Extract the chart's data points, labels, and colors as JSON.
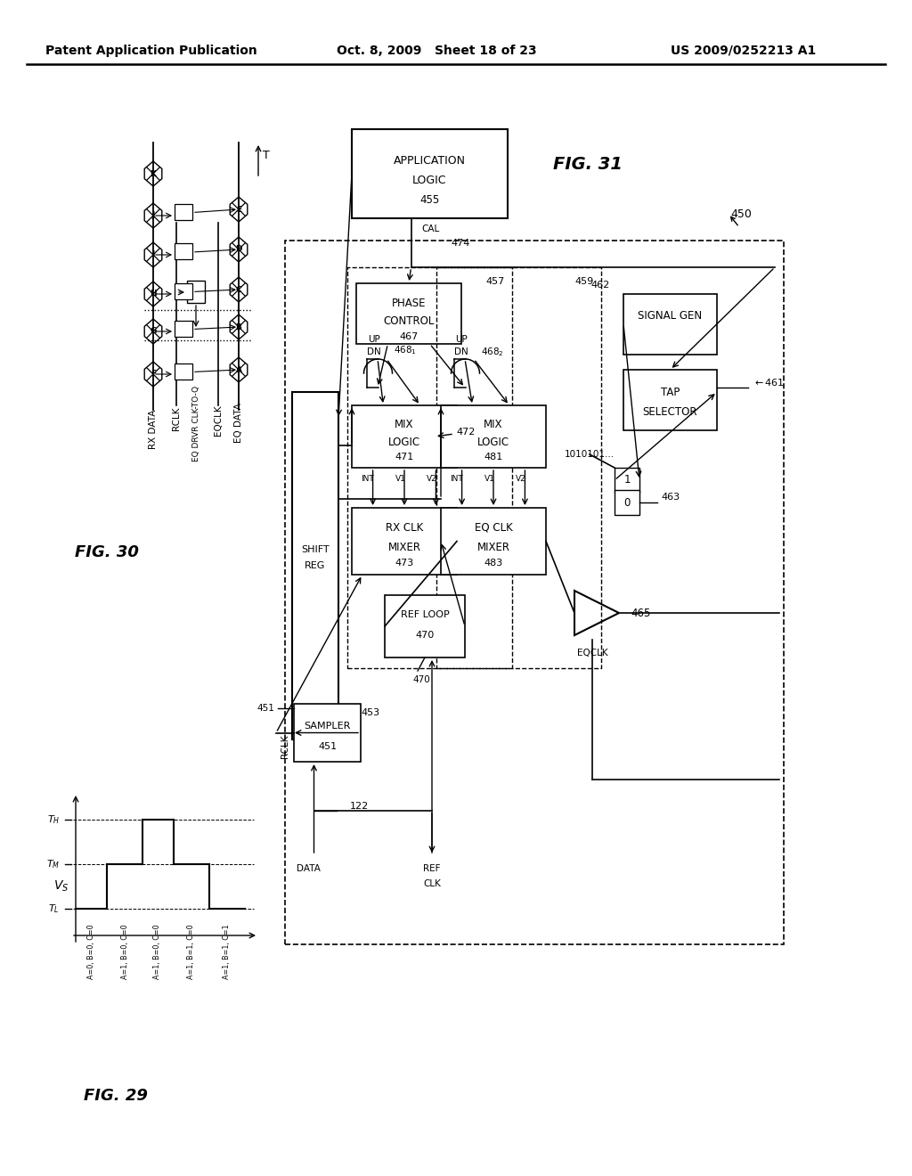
{
  "bg": "#ffffff",
  "header_left": "Patent Application Publication",
  "header_center": "Oct. 8, 2009   Sheet 18 of 23",
  "header_right": "US 2009/0252213 A1",
  "fig30_label": "FIG. 30",
  "fig31_label": "FIG. 31",
  "fig29_label": "FIG. 29"
}
